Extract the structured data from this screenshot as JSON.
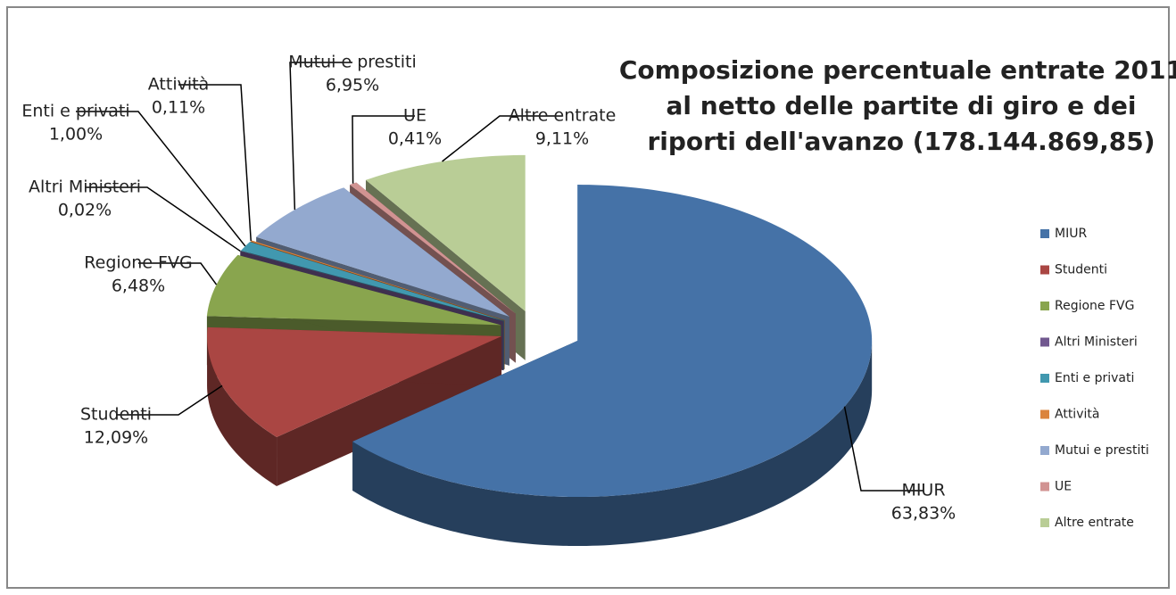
{
  "chart_data": {
    "type": "pie",
    "title": [
      "Composizione percentuale entrate 2011",
      "al netto delle partite di giro e dei",
      "riporti dell'avanzo (178.144.869,85)"
    ],
    "categories": [
      "MIUR",
      "Studenti",
      "Regione FVG",
      "Altri Ministeri",
      "Enti e privati",
      "Attività",
      "Mutui e prestiti",
      "UE",
      "Altre entrate"
    ],
    "values": [
      63.83,
      12.09,
      6.48,
      0.02,
      1.0,
      0.11,
      6.95,
      0.41,
      9.11
    ],
    "value_labels": [
      "63,83%",
      "12,09%",
      "6,48%",
      "0,02%",
      "1,00%",
      "0,11%",
      "6,95%",
      "0,41%",
      "9,11%"
    ],
    "colors": [
      "#4572a7",
      "#aa4643",
      "#89a54e",
      "#71588f",
      "#4198af",
      "#db843d",
      "#93a9cf",
      "#d19392",
      "#b9cd96"
    ],
    "legend": "right"
  }
}
